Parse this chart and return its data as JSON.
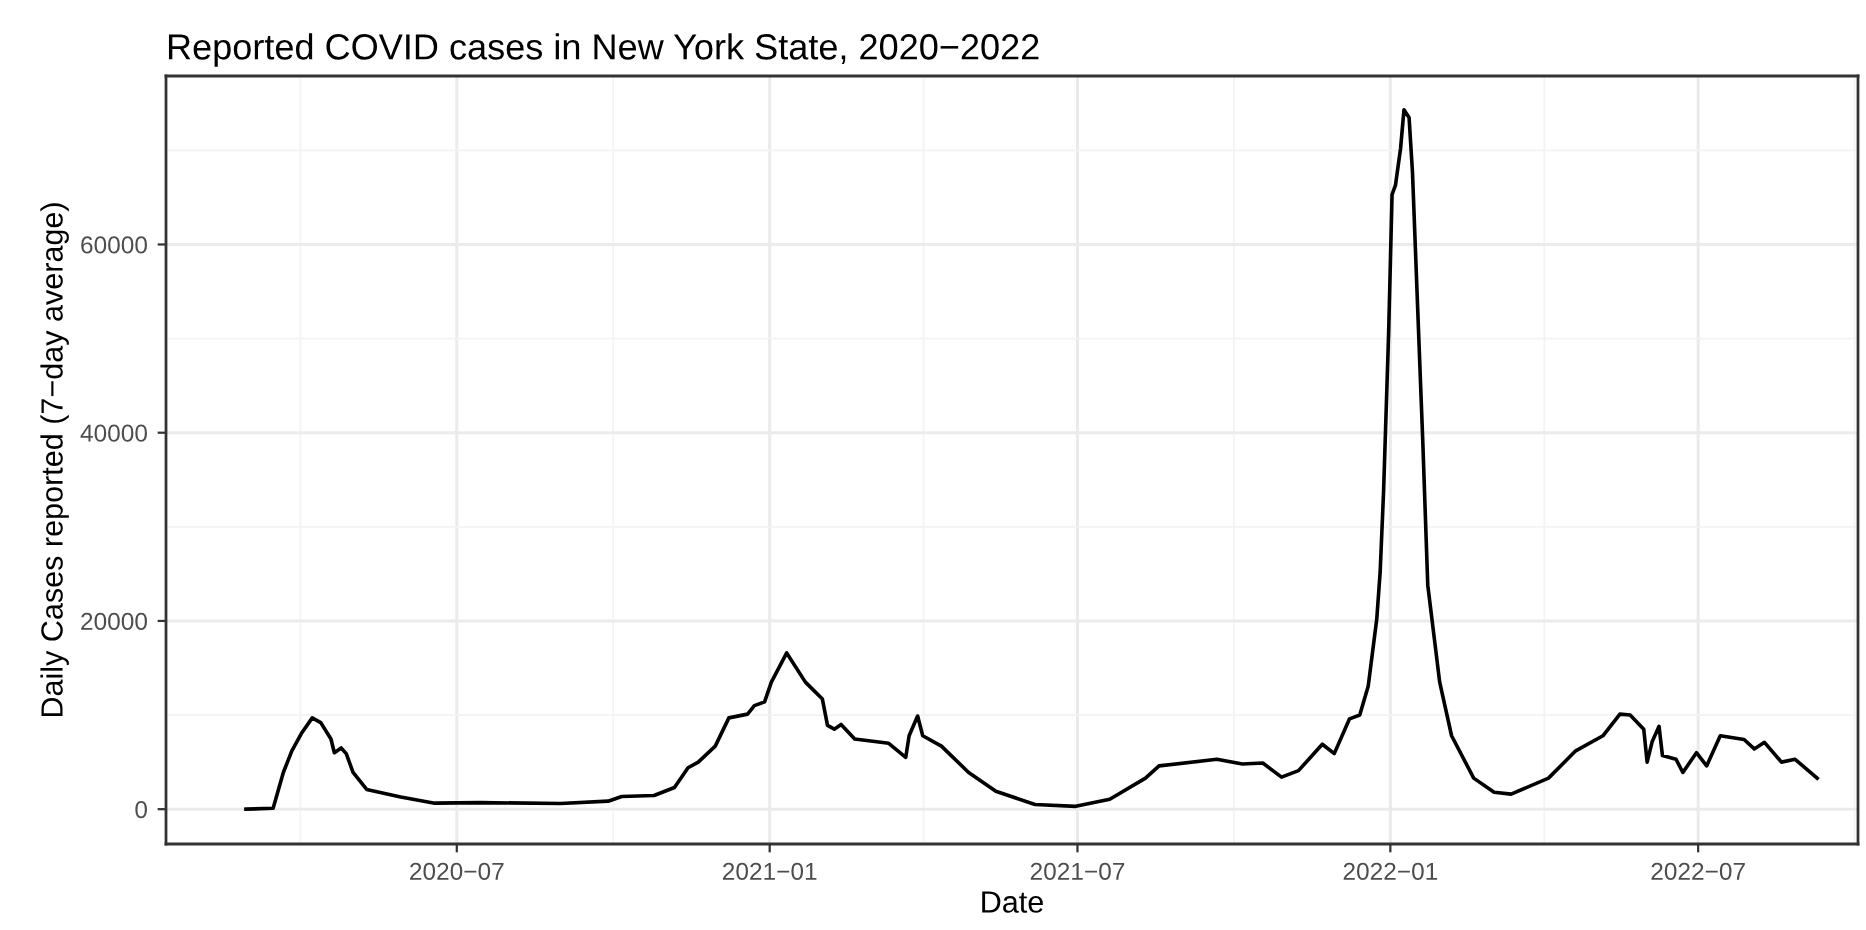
{
  "chart_data": {
    "type": "line",
    "title": "Reported COVID cases in New York State, 2020−2022",
    "xlabel": "Date",
    "ylabel": "Daily Cases reported (7−day average)",
    "x": [
      "2020-02-28",
      "2020-03-15",
      "2020-03-21",
      "2020-03-26",
      "2020-04-01",
      "2020-04-07",
      "2020-04-12",
      "2020-04-18",
      "2020-04-20",
      "2020-04-24",
      "2020-04-27",
      "2020-05-01",
      "2020-05-09",
      "2020-05-29",
      "2020-06-18",
      "2020-07-15",
      "2020-08-31",
      "2020-09-28",
      "2020-10-06",
      "2020-10-25",
      "2020-11-06",
      "2020-11-14",
      "2020-11-20",
      "2020-11-30",
      "2020-12-08",
      "2020-12-19",
      "2020-12-23",
      "2020-12-29",
      "2021-01-02",
      "2021-01-11",
      "2021-01-22",
      "2021-02-01",
      "2021-02-04",
      "2021-02-08",
      "2021-02-12",
      "2021-02-20",
      "2021-03-12",
      "2021-03-22",
      "2021-03-24",
      "2021-03-29",
      "2021-04-01",
      "2021-04-12",
      "2021-04-28",
      "2021-05-14",
      "2021-06-06",
      "2021-06-30",
      "2021-07-20",
      "2021-08-10",
      "2021-08-18",
      "2021-09-21",
      "2021-10-06",
      "2021-10-18",
      "2021-10-29",
      "2021-11-08",
      "2021-11-22",
      "2021-11-29",
      "2021-12-08",
      "2021-12-14",
      "2021-12-19",
      "2021-12-24",
      "2021-12-26",
      "2021-12-28",
      "2021-12-31",
      "2022-01-02",
      "2022-01-04",
      "2022-01-07",
      "2022-01-09",
      "2022-01-12",
      "2022-01-14",
      "2022-01-17",
      "2022-01-20",
      "2022-01-23",
      "2022-01-30",
      "2022-02-06",
      "2022-02-19",
      "2022-03-03",
      "2022-03-13",
      "2022-04-04",
      "2022-04-20",
      "2022-05-06",
      "2022-05-16",
      "2022-05-22",
      "2022-05-30",
      "2022-06-01",
      "2022-06-04",
      "2022-06-08",
      "2022-06-10",
      "2022-06-18",
      "2022-06-22",
      "2022-06-30",
      "2022-07-06",
      "2022-07-14",
      "2022-07-28",
      "2022-08-03",
      "2022-08-09",
      "2022-08-19",
      "2022-08-27",
      "2022-09-09"
    ],
    "series": [
      {
        "color": "#000000",
        "values": [
          0,
          100,
          3900,
          6200,
          8150,
          9700,
          9200,
          7450,
          6000,
          6500,
          5900,
          3900,
          2100,
          1300,
          640,
          700,
          600,
          850,
          1350,
          1450,
          2300,
          4400,
          5000,
          6700,
          9700,
          10100,
          11000,
          11400,
          13500,
          16600,
          13500,
          11700,
          8900,
          8500,
          9000,
          7450,
          7000,
          5500,
          7800,
          9900,
          7800,
          6700,
          3900,
          1900,
          500,
          300,
          1060,
          3300,
          4600,
          5300,
          4800,
          4900,
          3400,
          4100,
          6900,
          5900,
          9600,
          10000,
          13100,
          20200,
          25200,
          33700,
          50700,
          65300,
          66300,
          70200,
          74300,
          73500,
          67700,
          53500,
          39400,
          23800,
          13500,
          7800,
          3300,
          1800,
          1600,
          3300,
          6200,
          7800,
          10100,
          10000,
          8500,
          5000,
          7200,
          8800,
          5700,
          5300,
          3900,
          6000,
          4600,
          7800,
          7400,
          6400,
          7100,
          5000,
          5300,
          3300
        ]
      }
    ],
    "xlim": [
      "2020-01-12",
      "2022-10-03"
    ],
    "xticks": [
      {
        "value": "2020-07-01",
        "label": "2020−07"
      },
      {
        "value": "2021-01-01",
        "label": "2021−01"
      },
      {
        "value": "2021-07-01",
        "label": "2021−07"
      },
      {
        "value": "2022-01-01",
        "label": "2022−01"
      },
      {
        "value": "2022-07-01",
        "label": "2022−07"
      }
    ],
    "ylim": [
      -3700,
      77900
    ],
    "yticks": [
      0,
      20000,
      40000,
      60000
    ],
    "grid": true,
    "legend": false,
    "marker": "none",
    "line_style": "solid"
  }
}
